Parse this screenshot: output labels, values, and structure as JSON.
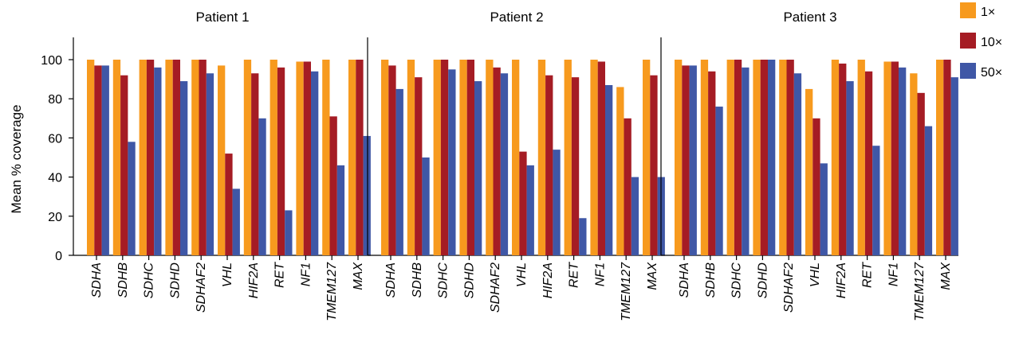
{
  "chart_data": {
    "type": "bar",
    "ylabel": "Mean % coverage",
    "ylim": [
      0,
      110
    ],
    "yticks": [
      0,
      20,
      40,
      60,
      80,
      100
    ],
    "legend_position": "top-right",
    "colors": [
      "#F79A1E",
      "#A51C24",
      "#3F57A6"
    ],
    "series_names": [
      "1×",
      "10×",
      "50×"
    ],
    "categories": [
      "SDHA",
      "SDHB",
      "SDHC",
      "SDHD",
      "SDHAF2",
      "VHL",
      "HIF2A",
      "RET",
      "NF1",
      "TMEM127",
      "MAX"
    ],
    "panels": [
      {
        "title": "Patient 1",
        "series": [
          {
            "name": "1×",
            "values": [
              100,
              100,
              100,
              100,
              100,
              97,
              100,
              100,
              99,
              100,
              100
            ]
          },
          {
            "name": "10×",
            "values": [
              97,
              92,
              100,
              100,
              100,
              52,
              93,
              96,
              99,
              71,
              100
            ]
          },
          {
            "name": "50×",
            "values": [
              97,
              58,
              96,
              89,
              93,
              34,
              70,
              23,
              94,
              46,
              61
            ]
          }
        ]
      },
      {
        "title": "Patient 2",
        "series": [
          {
            "name": "1×",
            "values": [
              100,
              100,
              100,
              100,
              100,
              100,
              100,
              100,
              100,
              86,
              100
            ]
          },
          {
            "name": "10×",
            "values": [
              97,
              91,
              100,
              100,
              96,
              53,
              92,
              91,
              99,
              70,
              92
            ]
          },
          {
            "name": "50×",
            "values": [
              85,
              50,
              95,
              89,
              93,
              46,
              54,
              19,
              87,
              40,
              40
            ]
          }
        ]
      },
      {
        "title": "Patient 3",
        "series": [
          {
            "name": "1×",
            "values": [
              100,
              100,
              100,
              100,
              100,
              85,
              100,
              100,
              99,
              93,
              100
            ]
          },
          {
            "name": "10×",
            "values": [
              97,
              94,
              100,
              100,
              100,
              70,
              98,
              94,
              99,
              83,
              100
            ]
          },
          {
            "name": "50×",
            "values": [
              97,
              76,
              96,
              100,
              93,
              47,
              89,
              56,
              96,
              66,
              91
            ]
          }
        ]
      }
    ]
  }
}
